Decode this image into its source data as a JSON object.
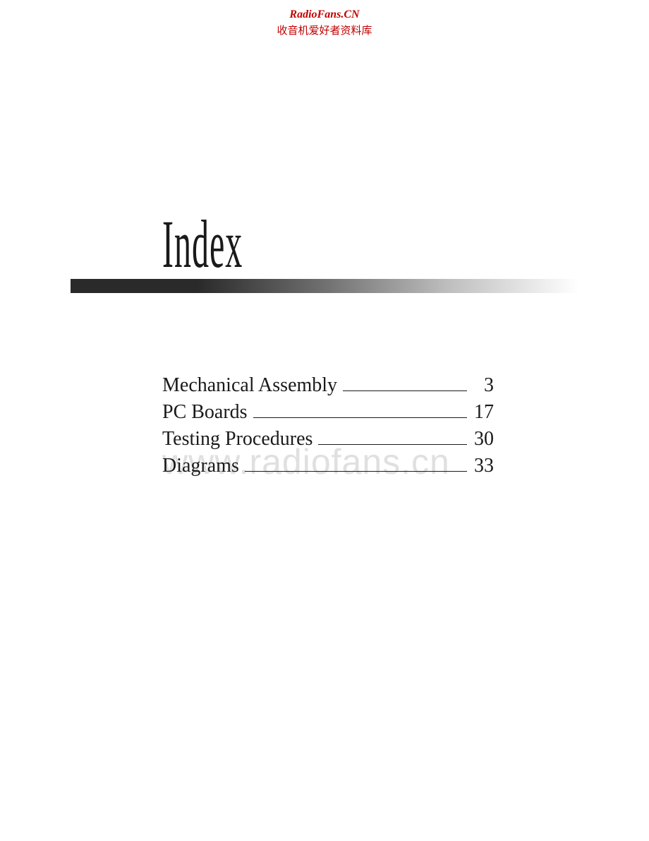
{
  "header": {
    "line1": "RadioFans.CN",
    "line2": "收音机爱好者资料库"
  },
  "title": "Index",
  "watermark": "www.radiofans.cn",
  "index": {
    "entries": [
      {
        "label": "Mechanical Assembly",
        "page": "3"
      },
      {
        "label": "PC Boards",
        "page": "17"
      },
      {
        "label": "Testing Procedures",
        "page": "30"
      },
      {
        "label": "Diagrams",
        "page": "33"
      }
    ]
  },
  "colors": {
    "header_text": "#c00000",
    "body_text": "#1a1a1a",
    "watermark_text": "#e0e0e0",
    "background": "#ffffff",
    "gradient_start": "#2a2a2a",
    "gradient_end": "#ffffff"
  },
  "typography": {
    "title_fontsize": 96,
    "entry_fontsize": 28,
    "header_fontsize": 16,
    "watermark_fontsize": 50
  }
}
